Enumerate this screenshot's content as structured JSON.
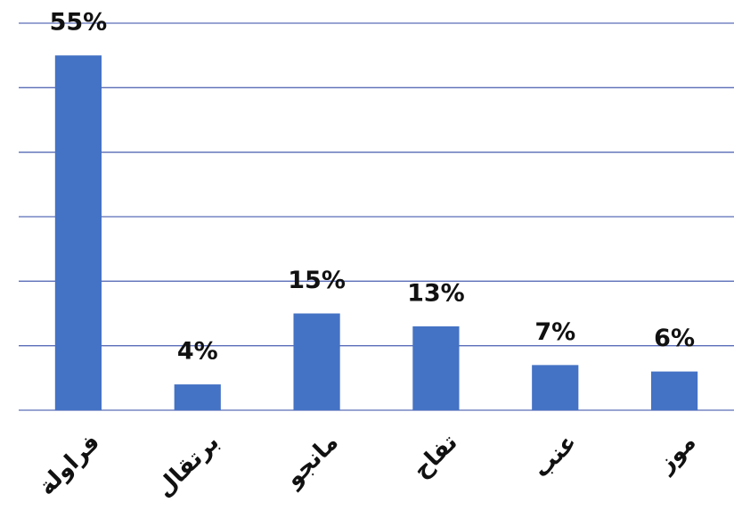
{
  "chart_data": {
    "type": "bar",
    "categories": [
      "فراولة",
      "برتقال",
      "مانجو",
      "تفاح",
      "عنب",
      "موز"
    ],
    "values": [
      55,
      4,
      15,
      13,
      7,
      6
    ],
    "value_labels": [
      "55%",
      "4%",
      "15%",
      "13%",
      "7%",
      "6%"
    ],
    "color": "#4472c4",
    "ylim": [
      0,
      60
    ],
    "yticks": [
      0,
      10,
      20,
      30,
      40,
      50,
      60
    ],
    "grid": true
  }
}
